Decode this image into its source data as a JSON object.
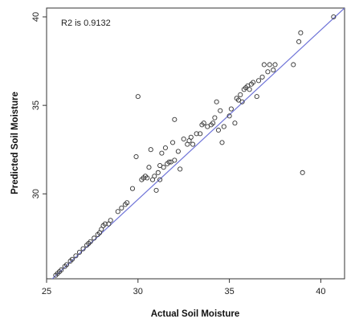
{
  "chart_data": {
    "type": "scatter",
    "title": "",
    "xlabel": "Actual Soil Moisture",
    "ylabel": "Predicted Soil Moisture",
    "annotation": "R2 is 0.9132",
    "xlim": [
      25,
      41.3
    ],
    "ylim": [
      25.2,
      40.5
    ],
    "x_ticks": [
      25,
      30,
      35,
      40
    ],
    "y_ticks": [
      30,
      35,
      40
    ],
    "grid": false,
    "colors": {
      "points": "#333333",
      "fit_line": "#6f74d8",
      "axes": "#333333"
    },
    "fit_line": {
      "from": [
        25,
        24.9
      ],
      "to": [
        41.3,
        40.5
      ]
    },
    "points": [
      [
        25.5,
        25.4
      ],
      [
        25.6,
        25.5
      ],
      [
        25.7,
        25.6
      ],
      [
        25.8,
        25.7
      ],
      [
        26.0,
        25.9
      ],
      [
        26.1,
        26.0
      ],
      [
        26.3,
        26.2
      ],
      [
        26.4,
        26.3
      ],
      [
        26.6,
        26.5
      ],
      [
        26.8,
        26.7
      ],
      [
        27.0,
        26.9
      ],
      [
        27.2,
        27.1
      ],
      [
        27.3,
        27.2
      ],
      [
        27.4,
        27.3
      ],
      [
        27.6,
        27.5
      ],
      [
        27.8,
        27.7
      ],
      [
        27.9,
        27.8
      ],
      [
        28.0,
        28.0
      ],
      [
        28.1,
        28.2
      ],
      [
        28.2,
        28.3
      ],
      [
        28.4,
        28.3
      ],
      [
        28.5,
        28.5
      ],
      [
        28.9,
        29.0
      ],
      [
        29.1,
        29.2
      ],
      [
        29.3,
        29.4
      ],
      [
        29.4,
        29.5
      ],
      [
        29.7,
        30.3
      ],
      [
        29.9,
        32.1
      ],
      [
        30.0,
        35.5
      ],
      [
        30.2,
        30.8
      ],
      [
        30.3,
        30.9
      ],
      [
        30.4,
        31.0
      ],
      [
        30.5,
        30.9
      ],
      [
        30.6,
        31.5
      ],
      [
        30.7,
        32.5
      ],
      [
        30.8,
        30.8
      ],
      [
        30.9,
        31.0
      ],
      [
        31.0,
        30.2
      ],
      [
        31.1,
        31.2
      ],
      [
        31.2,
        30.8
      ],
      [
        31.2,
        31.6
      ],
      [
        31.3,
        32.3
      ],
      [
        31.4,
        31.5
      ],
      [
        31.5,
        32.6
      ],
      [
        31.6,
        31.7
      ],
      [
        31.7,
        31.8
      ],
      [
        31.8,
        31.8
      ],
      [
        31.9,
        32.9
      ],
      [
        32.0,
        34.2
      ],
      [
        32.0,
        31.9
      ],
      [
        32.2,
        32.4
      ],
      [
        32.3,
        31.4
      ],
      [
        32.5,
        33.1
      ],
      [
        32.7,
        32.8
      ],
      [
        32.8,
        33.0
      ],
      [
        32.9,
        33.2
      ],
      [
        33.0,
        32.8
      ],
      [
        33.2,
        33.4
      ],
      [
        33.4,
        33.4
      ],
      [
        33.5,
        33.9
      ],
      [
        33.6,
        34.0
      ],
      [
        33.8,
        33.8
      ],
      [
        34.0,
        33.9
      ],
      [
        34.1,
        34.0
      ],
      [
        34.2,
        34.3
      ],
      [
        34.3,
        35.2
      ],
      [
        34.4,
        33.6
      ],
      [
        34.5,
        34.7
      ],
      [
        34.6,
        32.9
      ],
      [
        34.7,
        33.8
      ],
      [
        35.0,
        34.4
      ],
      [
        35.1,
        34.8
      ],
      [
        35.3,
        34.0
      ],
      [
        35.4,
        35.4
      ],
      [
        35.5,
        35.3
      ],
      [
        35.6,
        35.6
      ],
      [
        35.7,
        35.2
      ],
      [
        35.8,
        35.9
      ],
      [
        35.9,
        36.0
      ],
      [
        36.0,
        36.1
      ],
      [
        36.1,
        35.9
      ],
      [
        36.2,
        36.2
      ],
      [
        36.3,
        36.3
      ],
      [
        36.5,
        35.5
      ],
      [
        36.6,
        36.4
      ],
      [
        36.8,
        36.6
      ],
      [
        36.9,
        37.3
      ],
      [
        37.1,
        36.9
      ],
      [
        37.2,
        37.3
      ],
      [
        37.4,
        37.0
      ],
      [
        37.5,
        37.3
      ],
      [
        38.5,
        37.3
      ],
      [
        38.8,
        38.6
      ],
      [
        38.9,
        39.1
      ],
      [
        39.0,
        31.2
      ],
      [
        40.7,
        40.0
      ]
    ]
  }
}
